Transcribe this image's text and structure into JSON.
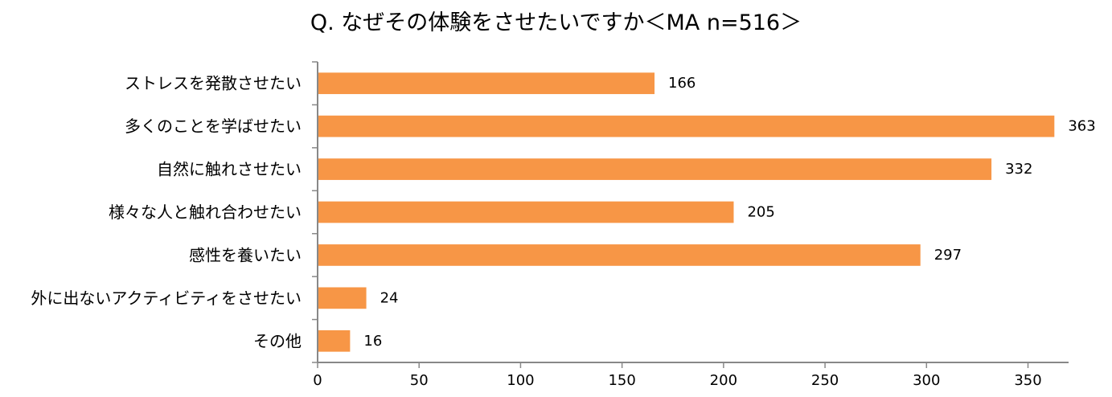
{
  "chart_data": {
    "type": "bar",
    "orientation": "horizontal",
    "title": "Q. なぜその体験をさせたいですか＜MA n=516＞",
    "categories": [
      "ストレスを発散させたい",
      "多くのことを学ばせたい",
      "自然に触れさせたい",
      "様々な人と触れ合わせたい",
      "感性を養いたい",
      "外に出ないアクティビティをさせたい",
      "その他"
    ],
    "values": [
      166,
      363,
      332,
      205,
      297,
      24,
      16
    ],
    "value_labels": [
      "166",
      "363",
      "332",
      "205",
      "297",
      "24",
      "16"
    ],
    "xlim": [
      0,
      370
    ],
    "xticks": [
      0,
      50,
      100,
      150,
      200,
      250,
      300,
      350
    ],
    "xtick_labels": [
      "0",
      "50",
      "100",
      "150",
      "200",
      "250",
      "300",
      "350"
    ],
    "xlabel": "",
    "ylabel": "",
    "grid": false,
    "legend": "none",
    "bar_color": "#F79646"
  }
}
